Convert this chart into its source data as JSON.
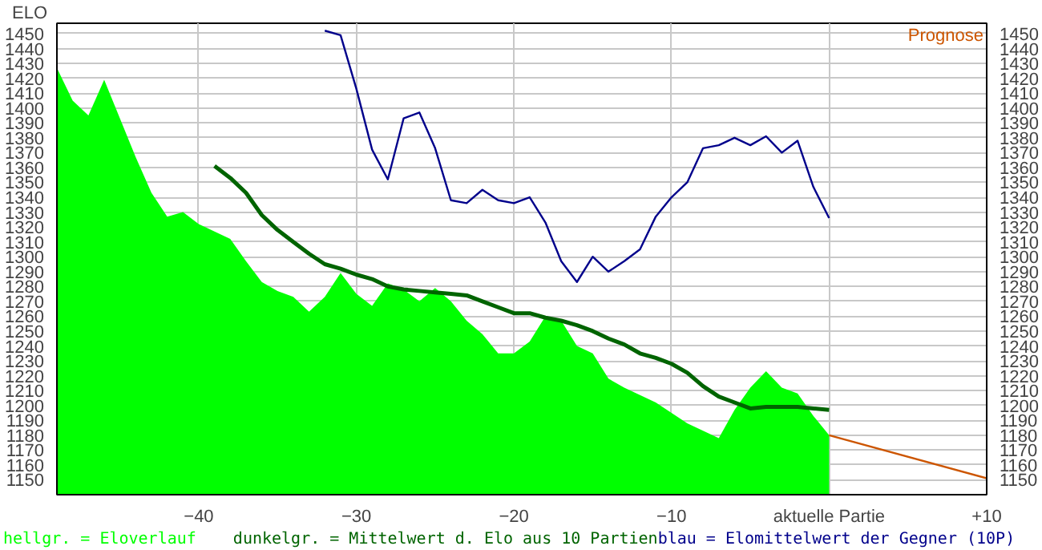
{
  "chart_data": {
    "type": "area",
    "ylabel": "ELO",
    "x": [
      -49,
      -48,
      -47,
      -46,
      -45,
      -44,
      -43,
      -42,
      -41,
      -40,
      -39,
      -38,
      -37,
      -36,
      -35,
      -34,
      -33,
      -32,
      -31,
      -30,
      -29,
      -28,
      -27,
      -26,
      -25,
      -24,
      -23,
      -22,
      -21,
      -20,
      -19,
      -18,
      -17,
      -16,
      -15,
      -14,
      -13,
      -12,
      -11,
      -10,
      -9,
      -8,
      -7,
      -6,
      -5,
      -4,
      -3,
      -2,
      -1,
      0
    ],
    "series": [
      {
        "name": "hellgr. = Eloverlauf",
        "color": "#00ff00",
        "values": [
          1427,
          1405,
          1395,
          1419,
          1393,
          1367,
          1343,
          1327,
          1330,
          1322,
          1317,
          1312,
          1297,
          1283,
          1277,
          1273,
          1263,
          1273,
          1289,
          1275,
          1267,
          1282,
          1278,
          1270,
          1279,
          1270,
          1257,
          1248,
          1235,
          1235,
          1243,
          1260,
          1257,
          1240,
          1235,
          1218,
          1212,
          1207,
          1202,
          1195,
          1188,
          1183,
          1178,
          1197,
          1212,
          1223,
          1212,
          1208,
          1193,
          1180
        ]
      },
      {
        "name": "dunkelgr. = Mittelwert d. Elo aus 10 Partien",
        "type": "line",
        "color": "#006400",
        "values": [
          null,
          null,
          null,
          null,
          null,
          null,
          null,
          null,
          null,
          null,
          1361,
          1353,
          1343,
          1328,
          1318,
          1310,
          1302,
          1295,
          1292,
          1288,
          1285,
          1280,
          1278,
          1277,
          1276,
          1275,
          1274,
          1270,
          1266,
          1262,
          1262,
          1259,
          1257,
          1254,
          1250,
          1245,
          1241,
          1235,
          1232,
          1228,
          1222,
          1213,
          1206,
          1202,
          1198,
          1199,
          1199,
          1199,
          1198,
          1197
        ]
      },
      {
        "name": "blau = Elomittelwert der Gegner (10P)",
        "type": "line",
        "color": "#00008b",
        "values": [
          null,
          null,
          null,
          null,
          null,
          null,
          null,
          null,
          null,
          null,
          null,
          null,
          null,
          null,
          null,
          null,
          null,
          1452,
          1449,
          1413,
          1372,
          1352,
          1393,
          1397,
          1373,
          1338,
          1336,
          1345,
          1338,
          1336,
          1340,
          1323,
          1297,
          1283,
          1300,
          1290,
          1297,
          1305,
          1327,
          1340,
          1350,
          1373,
          1375,
          1380,
          1375,
          1381,
          1370,
          1378,
          1347,
          1326
        ]
      },
      {
        "name": "Prognose",
        "type": "line",
        "color": "#cc5500",
        "x": [
          0,
          10
        ],
        "values": [
          1180,
          1151
        ]
      }
    ],
    "xlim": [
      -49,
      10
    ],
    "xticks": [
      -40,
      -30,
      -20,
      -10,
      {
        "value": 0,
        "label": "aktuelle Partie"
      },
      {
        "value": 10,
        "label": "+10"
      }
    ],
    "ylim": [
      1140,
      1457
    ],
    "yticks": [
      1150,
      1160,
      1170,
      1180,
      1190,
      1200,
      1210,
      1220,
      1230,
      1240,
      1250,
      1260,
      1270,
      1280,
      1290,
      1300,
      1310,
      1320,
      1330,
      1340,
      1350,
      1360,
      1370,
      1380,
      1390,
      1400,
      1410,
      1420,
      1430,
      1440,
      1450
    ],
    "y2lim": [
      1140,
      1457
    ],
    "y2ticks": [
      1150,
      1160,
      1170,
      1180,
      1190,
      1200,
      1210,
      1220,
      1230,
      1240,
      1250,
      1260,
      1270,
      1280,
      1290,
      1300,
      1310,
      1320,
      1330,
      1340,
      1350,
      1360,
      1370,
      1380,
      1390,
      1400,
      1410,
      1420,
      1430,
      1440,
      1450
    ],
    "grid": true,
    "legend": "bottom"
  }
}
